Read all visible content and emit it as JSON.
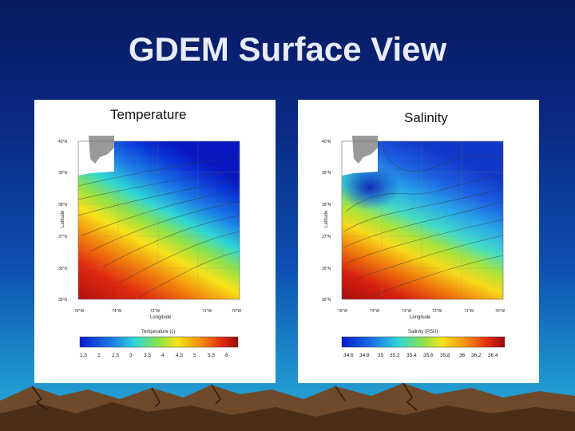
{
  "slide": {
    "title": "GDEM Surface View"
  },
  "panels": [
    {
      "title": "Temperature",
      "lat_ticks": [
        "40°N",
        "39°N",
        "38°N",
        "37°N",
        "36°N",
        "35°N"
      ],
      "lon_ticks": [
        "76°W",
        "74°W",
        "72°W",
        "71°W",
        "70°W"
      ],
      "ylabel": "Latitude",
      "xlabel": "Longitude",
      "colorbar_label": "Temperature (c)",
      "colorbar_ticks": [
        "1.5",
        "2",
        "2.5",
        "3",
        "3.5",
        "4",
        "4.5",
        "5",
        "5.5",
        "6"
      ]
    },
    {
      "title": "Salinity",
      "lat_ticks": [
        "40°N",
        "39°N",
        "38°N",
        "37°N",
        "36°N",
        "35°N"
      ],
      "lon_ticks": [
        "76°W",
        "74°W",
        "73°W",
        "72°W",
        "71°W",
        "70°W"
      ],
      "ylabel": "Latitude",
      "xlabel": "Longitude",
      "colorbar_label": "Salinity (PSU)",
      "colorbar_ticks": [
        "34.6",
        "34.8",
        "35",
        "35.2",
        "35.4",
        "35.6",
        "35.8",
        "36",
        "36.2",
        "36.4"
      ]
    }
  ],
  "colors": {
    "land": "#9a9a9a",
    "background_top": "#071a5e",
    "background_bottom": "#2bb0d6"
  }
}
